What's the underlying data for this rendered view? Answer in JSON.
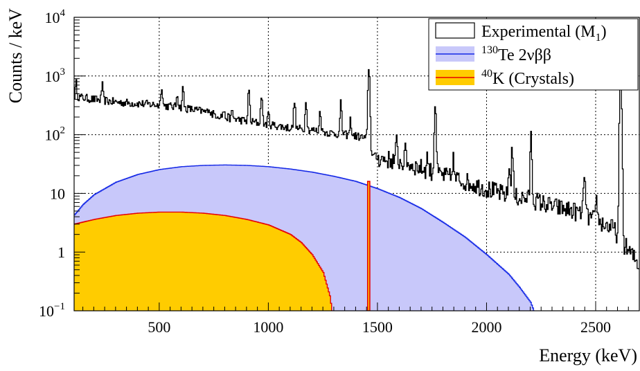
{
  "chart_data": {
    "type": "line",
    "ylabel": "Counts / keV",
    "xlabel": "Energy (keV)",
    "xlim": [
      110,
      2700
    ],
    "ylim": [
      0.1,
      10000
    ],
    "yscale": "log",
    "grid": true,
    "legend_position": "top-right",
    "x_ticks": [
      {
        "value": 500,
        "label": "500"
      },
      {
        "value": 1000,
        "label": "1000"
      },
      {
        "value": 1500,
        "label": "1500"
      },
      {
        "value": 2000,
        "label": "2000"
      },
      {
        "value": 2500,
        "label": "2500"
      }
    ],
    "y_ticks": [
      {
        "value": 0.1,
        "base": "10",
        "exp": "−1"
      },
      {
        "value": 1,
        "base": "1",
        "exp": ""
      },
      {
        "value": 10,
        "base": "10",
        "exp": ""
      },
      {
        "value": 100,
        "base": "10",
        "exp": "2"
      },
      {
        "value": 1000,
        "base": "10",
        "exp": "3"
      },
      {
        "value": 10000,
        "base": "10",
        "exp": "4"
      }
    ],
    "series": [
      {
        "name": "Experimental (M1)",
        "legend": {
          "main": "Experimental (M",
          "sub": "1",
          "tail": ")"
        },
        "style": "step",
        "color": "#000000",
        "continuum": [
          [
            110,
            450
          ],
          [
            200,
            400
          ],
          [
            300,
            360
          ],
          [
            400,
            340
          ],
          [
            500,
            320
          ],
          [
            600,
            290
          ],
          [
            700,
            250
          ],
          [
            800,
            200
          ],
          [
            900,
            170
          ],
          [
            1000,
            150
          ],
          [
            1100,
            130
          ],
          [
            1200,
            120
          ],
          [
            1300,
            105
          ],
          [
            1400,
            95
          ],
          [
            1455,
            85
          ],
          [
            1480,
            45
          ],
          [
            1500,
            40
          ],
          [
            1600,
            35
          ],
          [
            1700,
            27
          ],
          [
            1800,
            20
          ],
          [
            1900,
            16
          ],
          [
            2000,
            12
          ],
          [
            2100,
            9
          ],
          [
            2200,
            8
          ],
          [
            2300,
            6
          ],
          [
            2400,
            5
          ],
          [
            2500,
            3.5
          ],
          [
            2580,
            2.5
          ],
          [
            2640,
            1.2
          ],
          [
            2700,
            0.6
          ]
        ],
        "peaks": [
          {
            "e": 120,
            "h": 750
          },
          {
            "e": 239,
            "h": 700
          },
          {
            "e": 511,
            "h": 700
          },
          {
            "e": 583,
            "h": 520
          },
          {
            "e": 609,
            "h": 620
          },
          {
            "e": 727,
            "h": 300
          },
          {
            "e": 795,
            "h": 260
          },
          {
            "e": 835,
            "h": 250
          },
          {
            "e": 911,
            "h": 600
          },
          {
            "e": 969,
            "h": 500
          },
          {
            "e": 1001,
            "h": 230
          },
          {
            "e": 1120,
            "h": 400
          },
          {
            "e": 1173,
            "h": 420
          },
          {
            "e": 1238,
            "h": 260
          },
          {
            "e": 1333,
            "h": 350
          },
          {
            "e": 1377,
            "h": 180
          },
          {
            "e": 1461,
            "h": 1500
          },
          {
            "e": 1588,
            "h": 75
          },
          {
            "e": 1630,
            "h": 60
          },
          {
            "e": 1730,
            "h": 45
          },
          {
            "e": 1765,
            "h": 380
          },
          {
            "e": 1847,
            "h": 40
          },
          {
            "e": 2104,
            "h": 30
          },
          {
            "e": 2118,
            "h": 60
          },
          {
            "e": 2204,
            "h": 90
          },
          {
            "e": 2448,
            "h": 25
          },
          {
            "e": 2505,
            "h": 8
          },
          {
            "e": 2615,
            "h": 1200
          }
        ]
      },
      {
        "name": "130Te 2νββ",
        "legend": {
          "sup": "130",
          "main": "Te 2νββ"
        },
        "style": "filled",
        "color": "#1428e6",
        "fill": "#c8c8fa",
        "values": [
          [
            110,
            4.3
          ],
          [
            150,
            6.5
          ],
          [
            200,
            9.5
          ],
          [
            300,
            15.5
          ],
          [
            400,
            21
          ],
          [
            500,
            25.5
          ],
          [
            600,
            28.5
          ],
          [
            700,
            30
          ],
          [
            800,
            30.5
          ],
          [
            900,
            30
          ],
          [
            1000,
            28.5
          ],
          [
            1100,
            26
          ],
          [
            1200,
            23
          ],
          [
            1300,
            19.5
          ],
          [
            1400,
            16
          ],
          [
            1500,
            12
          ],
          [
            1600,
            8.5
          ],
          [
            1700,
            5.5
          ],
          [
            1800,
            3.2
          ],
          [
            1900,
            1.8
          ],
          [
            2000,
            0.9
          ],
          [
            2100,
            0.42
          ],
          [
            2150,
            0.25
          ],
          [
            2200,
            0.14
          ],
          [
            2215,
            0.1
          ]
        ]
      },
      {
        "name": "40K (Crystals)",
        "legend": {
          "sup": "40",
          "main": "K (Crystals)"
        },
        "style": "filled",
        "color": "#e60000",
        "fill": "#ffcc00",
        "values": [
          [
            110,
            3.0
          ],
          [
            200,
            3.6
          ],
          [
            300,
            4.2
          ],
          [
            400,
            4.6
          ],
          [
            500,
            4.8
          ],
          [
            600,
            4.8
          ],
          [
            700,
            4.6
          ],
          [
            800,
            4.2
          ],
          [
            900,
            3.6
          ],
          [
            1000,
            2.9
          ],
          [
            1100,
            2.0
          ],
          [
            1150,
            1.45
          ],
          [
            1200,
            0.9
          ],
          [
            1250,
            0.45
          ],
          [
            1280,
            0.18
          ],
          [
            1290,
            0.1
          ]
        ],
        "peak": {
          "e": 1461,
          "h": 16,
          "floor": 0.1
        }
      }
    ]
  }
}
